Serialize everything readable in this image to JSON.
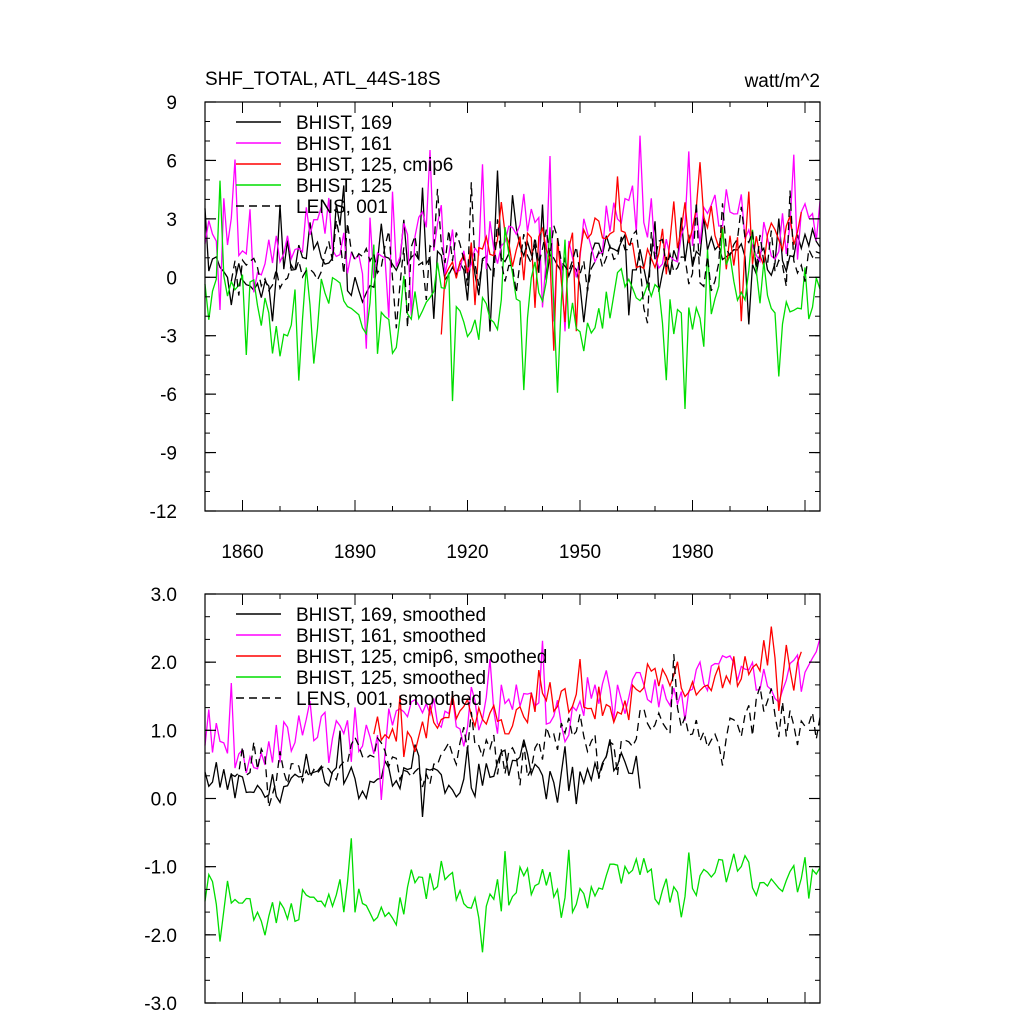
{
  "chart_data": [
    {
      "type": "line",
      "title": "SHF_TOTAL, ATL_44S-18S",
      "units": "watt/m^2",
      "xlim": [
        1850,
        2014
      ],
      "ylim": [
        -12,
        9
      ],
      "yticks": [
        9,
        6,
        3,
        0,
        -3,
        -6,
        -9,
        -12
      ],
      "ytick_labels": [
        "9",
        "6",
        "3",
        "0",
        "-3",
        "-6",
        "-9",
        "-12"
      ],
      "xticks": [
        1860,
        1890,
        1920,
        1950,
        1980
      ],
      "xtick_labels": [
        "1860",
        "1890",
        "1920",
        "1950",
        "1980"
      ],
      "legend_position": "top-left",
      "series": [
        {
          "name": "BHIST, 169",
          "color": "#000000",
          "dash": "",
          "start": 1850,
          "end": 2014,
          "seed": 11,
          "mean": 0.4,
          "trend": 0.6,
          "amp": 1.9,
          "spike": 0.1,
          "spikeAmp": 3.5
        },
        {
          "name": "BHIST, 161",
          "color": "#ff00ff",
          "dash": "",
          "start": 1850,
          "end": 2014,
          "seed": 23,
          "mean": 1.6,
          "trend": 0.9,
          "amp": 2.6,
          "spike": 0.08,
          "spikeAmp": 4.5
        },
        {
          "name": "BHIST, 125, cmip6",
          "color": "#ff0000",
          "dash": "",
          "start": 1913,
          "end": 2009,
          "seed": 37,
          "mean": 1.0,
          "trend": 1.0,
          "amp": 2.3,
          "spike": 0.08,
          "spikeAmp": 4.0
        },
        {
          "name": "BHIST, 125",
          "color": "#00dd00",
          "dash": "",
          "start": 1850,
          "end": 2014,
          "seed": 41,
          "mean": -1.5,
          "trend": 0.2,
          "amp": 2.7,
          "spike": 0.12,
          "spikeAmp": 4.5
        },
        {
          "name": "LENS, 001",
          "color": "#000000",
          "dash": "8,5",
          "start": 1857,
          "end": 2014,
          "seed": 53,
          "mean": 0.6,
          "trend": 0.7,
          "amp": 2.1,
          "spike": 0.08,
          "spikeAmp": 4.0
        }
      ]
    },
    {
      "type": "line",
      "title": "",
      "units": "",
      "xlim": [
        1850,
        2014
      ],
      "ylim": [
        -3,
        3
      ],
      "yticks": [
        3,
        2,
        1,
        0,
        -1,
        -2,
        -3
      ],
      "ytick_labels": [
        "3.0",
        "2.0",
        "1.0",
        "0.0",
        "-1.0",
        "-2.0",
        "-3.0"
      ],
      "xticks": [
        1860,
        1890,
        1920,
        1950,
        1980
      ],
      "xtick_labels": [],
      "legend_position": "top-left",
      "series": [
        {
          "name": "BHIST, 169, smoothed",
          "color": "#000000",
          "dash": "",
          "start": 1850,
          "end": 1966,
          "seed": 61,
          "mean": 0.2,
          "trend": 0.3,
          "amp": 0.45,
          "spike": 0.04,
          "spikeAmp": 0.7
        },
        {
          "name": "BHIST, 161, smoothed",
          "color": "#ff00ff",
          "dash": "",
          "start": 1850,
          "end": 2014,
          "seed": 67,
          "mean": 0.7,
          "trend": 1.3,
          "amp": 0.55,
          "spike": 0.04,
          "spikeAmp": 0.8
        },
        {
          "name": "BHIST, 125, cmip6, smoothed",
          "color": "#ff0000",
          "dash": "",
          "start": 1895,
          "end": 2009,
          "seed": 71,
          "mean": 0.5,
          "trend": 1.5,
          "amp": 0.45,
          "spike": 0.04,
          "spikeAmp": 0.7
        },
        {
          "name": "BHIST, 125, smoothed",
          "color": "#00dd00",
          "dash": "",
          "start": 1850,
          "end": 2014,
          "seed": 79,
          "mean": -1.6,
          "trend": 0.5,
          "amp": 0.5,
          "spike": 0.04,
          "spikeAmp": 0.8
        },
        {
          "name": "LENS, 001, smoothed",
          "color": "#000000",
          "dash": "8,5",
          "start": 1857,
          "end": 2014,
          "seed": 83,
          "mean": 0.3,
          "trend": 0.9,
          "amp": 0.5,
          "spike": 0.04,
          "spikeAmp": 0.8
        }
      ]
    }
  ]
}
